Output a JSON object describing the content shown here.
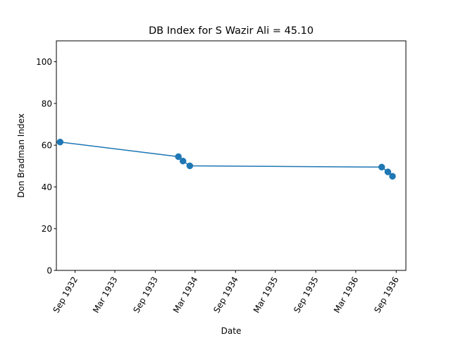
{
  "chart_data": {
    "type": "line",
    "title": "DB Index for S Wazir Ali = 45.10",
    "xlabel": "Date",
    "ylabel": "Don Bradman Index",
    "xlim": [
      "1932-06-08",
      "1936-10-15"
    ],
    "ylim": [
      0,
      110
    ],
    "x_ticks": [
      {
        "date": "1932-09-01",
        "label": "Sep 1932"
      },
      {
        "date": "1933-03-01",
        "label": "Mar 1933"
      },
      {
        "date": "1933-09-01",
        "label": "Sep 1933"
      },
      {
        "date": "1934-03-01",
        "label": "Mar 1934"
      },
      {
        "date": "1934-09-01",
        "label": "Sep 1934"
      },
      {
        "date": "1935-03-01",
        "label": "Mar 1935"
      },
      {
        "date": "1935-09-01",
        "label": "Sep 1935"
      },
      {
        "date": "1936-03-01",
        "label": "Mar 1936"
      },
      {
        "date": "1936-09-01",
        "label": "Sep 1936"
      }
    ],
    "y_ticks": [
      0,
      20,
      40,
      60,
      80,
      100
    ],
    "grid": false,
    "series": [
      {
        "color": "#1f77b4",
        "points": [
          {
            "x": "1932-06-25",
            "y": 61.5
          },
          {
            "x": "1933-12-15",
            "y": 54.5
          },
          {
            "x": "1934-01-05",
            "y": 52.4
          },
          {
            "x": "1934-02-05",
            "y": 50.1
          },
          {
            "x": "1936-06-27",
            "y": 49.5
          },
          {
            "x": "1936-07-25",
            "y": 47.2
          },
          {
            "x": "1936-08-15",
            "y": 45.1
          }
        ]
      }
    ]
  }
}
